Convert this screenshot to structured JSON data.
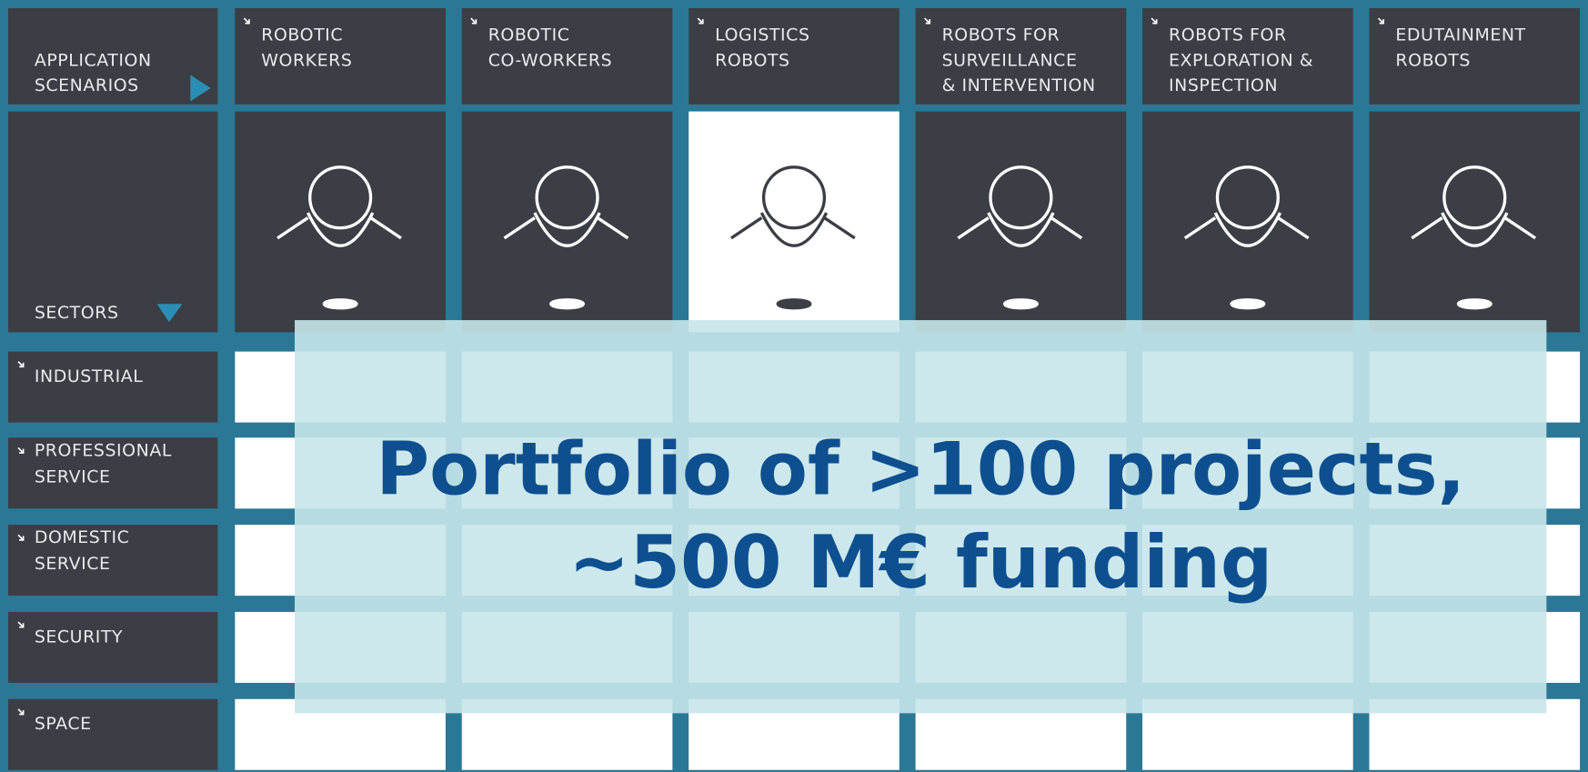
{
  "grid": {
    "scenarios_label": [
      "APPLICATION",
      "SCENARIOS"
    ],
    "sectors_label": "SECTORS",
    "columns": [
      [
        "ROBOTIC",
        "WORKERS"
      ],
      [
        "ROBOTIC",
        "CO-WORKERS"
      ],
      [
        "LOGISTICS",
        "ROBOTS"
      ],
      [
        "ROBOTS FOR",
        "SURVEILLANCE",
        "& INTERVENTION"
      ],
      [
        "ROBOTS FOR",
        "EXPLORATION &",
        "INSPECTION"
      ],
      [
        "EDUTAINMENT",
        "ROBOTS"
      ]
    ],
    "rows": [
      [
        "INDUSTRIAL"
      ],
      [
        "PROFESSIONAL",
        "SERVICE"
      ],
      [
        "DOMESTIC",
        "SERVICE"
      ],
      [
        "SECURITY"
      ],
      [
        "SPACE"
      ]
    ]
  },
  "overlay": {
    "lines": [
      "Portfolio of >100 projects,",
      "~500 M€ funding"
    ]
  }
}
